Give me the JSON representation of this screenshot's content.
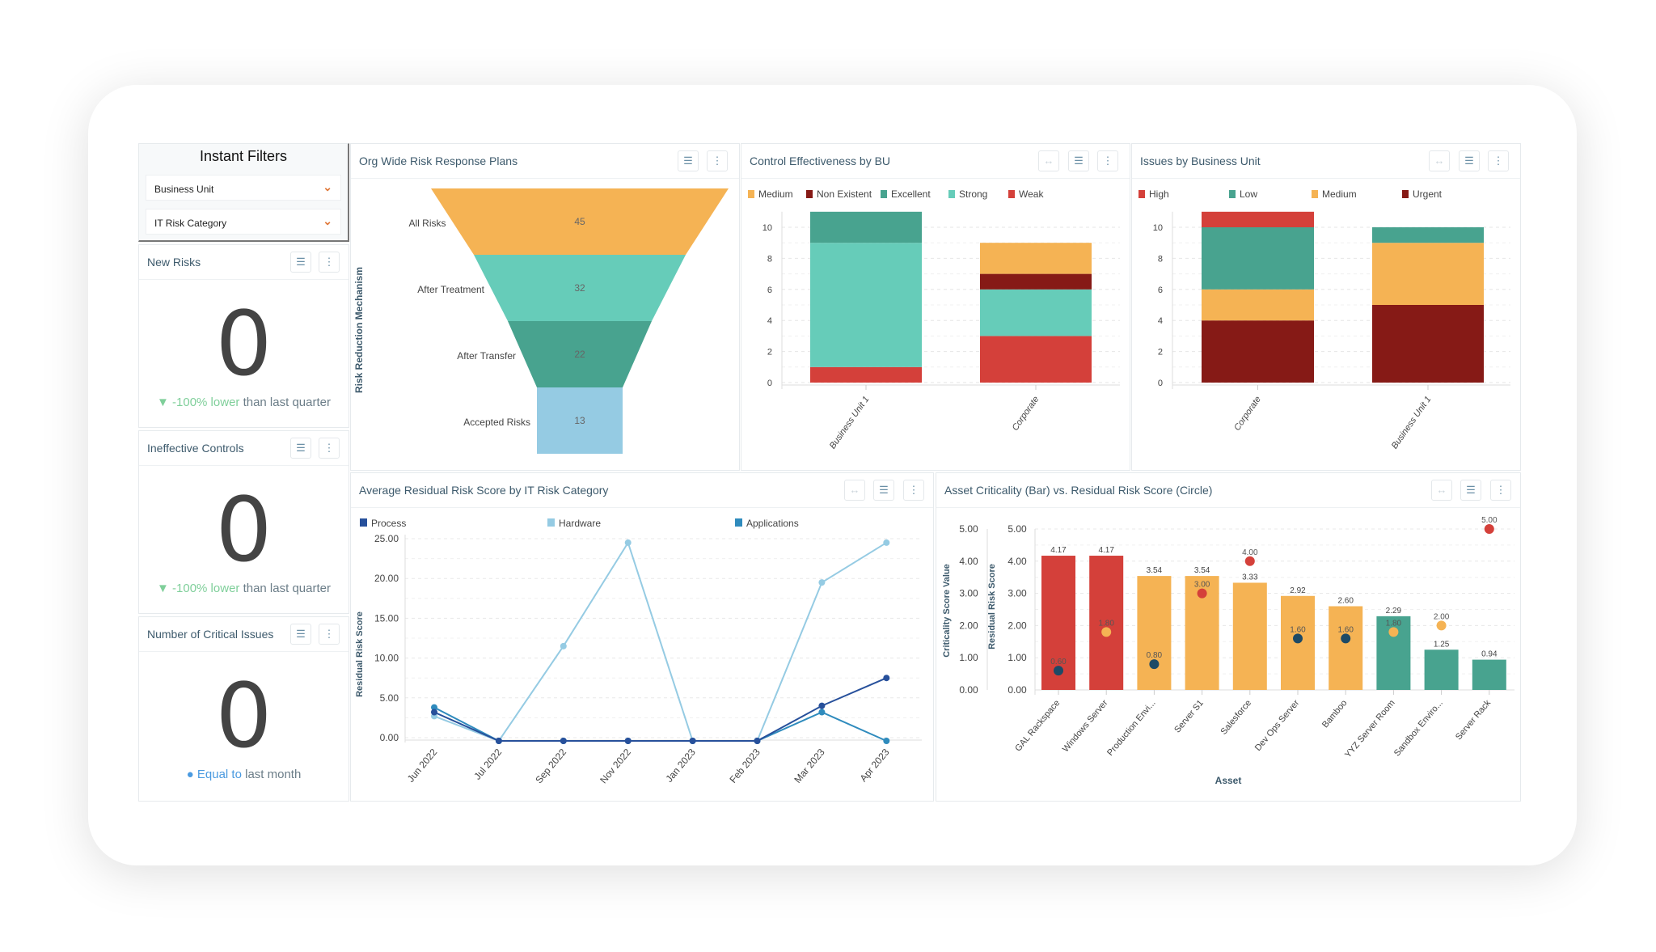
{
  "filters": {
    "title": "Instant Filters",
    "business_unit": "Business Unit",
    "it_risk_category": "IT Risk Category"
  },
  "kpis": [
    {
      "title": "New Risks",
      "value": "0",
      "delta": "▼ -100% lower",
      "suffix": " than last quarter",
      "trend": "down"
    },
    {
      "title": "Ineffective Controls",
      "value": "0",
      "delta": "▼ -100% lower",
      "suffix": " than last quarter",
      "trend": "down"
    },
    {
      "title": "Number of Critical Issues",
      "value": "0",
      "delta": "● Equal to",
      "suffix": " last month",
      "trend": "equal"
    }
  ],
  "icons": {
    "filter": "filter-icon",
    "more": "more-vertical-icon",
    "fit": "fit-width-icon",
    "chevron": "chevron-down-icon"
  },
  "chart_data": [
    {
      "id": "funnel",
      "type": "funnel",
      "title": "Org Wide Risk Response Plans",
      "ylabel": "Risk Reduction Mechanism",
      "categories": [
        "All Risks",
        "After Treatment",
        "After Transfer",
        "Accepted Risks"
      ],
      "values": [
        45,
        32,
        22,
        13
      ],
      "colors": [
        "#f5b354",
        "#66ccb9",
        "#48a38f",
        "#95cbe3"
      ]
    },
    {
      "id": "control",
      "type": "bar",
      "stacked": true,
      "title": "Control Effectiveness by BU",
      "categories": [
        "Business Unit 1",
        "Corporate"
      ],
      "ylim": [
        0,
        11
      ],
      "yticks": [
        0,
        2,
        4,
        6,
        8,
        10
      ],
      "grid": true,
      "legend": "top",
      "series": [
        {
          "name": "Medium",
          "color": "#f5b354",
          "values": [
            0,
            2
          ]
        },
        {
          "name": "Non Existent",
          "color": "#861a16",
          "values": [
            0,
            1
          ]
        },
        {
          "name": "Excellent",
          "color": "#48a38f",
          "values": [
            2,
            0
          ]
        },
        {
          "name": "Strong",
          "color": "#66ccb9",
          "values": [
            8,
            3
          ]
        },
        {
          "name": "Weak",
          "color": "#d4403a",
          "values": [
            1,
            3
          ]
        }
      ],
      "stack_order": [
        "Weak",
        "Strong",
        "Non Existent",
        "Excellent",
        "Medium"
      ]
    },
    {
      "id": "issues",
      "type": "bar",
      "stacked": true,
      "title": "Issues by Business Unit",
      "categories": [
        "Corporate",
        "Business Unit 1"
      ],
      "ylim": [
        0,
        11
      ],
      "yticks": [
        0,
        2,
        4,
        6,
        8,
        10
      ],
      "grid": true,
      "legend": "top",
      "series": [
        {
          "name": "High",
          "color": "#d4403a",
          "values": [
            1,
            0
          ]
        },
        {
          "name": "Low",
          "color": "#48a38f",
          "values": [
            4,
            1
          ]
        },
        {
          "name": "Medium",
          "color": "#f5b354",
          "values": [
            2,
            4
          ]
        },
        {
          "name": "Urgent",
          "color": "#861a16",
          "values": [
            4,
            5
          ]
        }
      ],
      "stack_order": [
        "Urgent",
        "Medium",
        "Low",
        "High"
      ]
    },
    {
      "id": "line",
      "type": "line",
      "title": "Average Residual Risk Score by IT Risk Category",
      "ylabel": "Residual Risk Score",
      "categories": [
        "Jun 2022",
        "Jul 2022",
        "Sep 2022",
        "Nov 2022",
        "Jan 2023",
        "Feb 2023",
        "Mar 2023",
        "Apr 2023"
      ],
      "ylim": [
        0,
        25
      ],
      "yticks": [
        "0.00",
        "5.00",
        "10.00",
        "15.00",
        "20.00",
        "25.00"
      ],
      "grid": true,
      "legend": "top",
      "series": [
        {
          "name": "Process",
          "color": "#27509b",
          "values": [
            3.2,
            0,
            0,
            0,
            0,
            0,
            4,
            7.5
          ]
        },
        {
          "name": "Hardware",
          "color": "#95cbe3",
          "values": [
            2.7,
            0,
            11.5,
            24.5,
            0,
            0,
            19.5,
            24.5
          ]
        },
        {
          "name": "Applications",
          "color": "#2f8bbd",
          "values": [
            3.8,
            0,
            0,
            0,
            0,
            0,
            3.2,
            0
          ]
        }
      ]
    },
    {
      "id": "asset",
      "type": "bar+scatter",
      "title": "Asset Criticality (Bar) vs. Residual Risk Score (Circle)",
      "xlabel": "Asset",
      "ylabel": "Criticality Score Value",
      "ylabel2": "Residual Risk Score",
      "ylim": [
        0,
        5
      ],
      "yticks": [
        "0.00",
        "1.00",
        "2.00",
        "3.00",
        "4.00",
        "5.00"
      ],
      "categories": [
        "GAL Rackspace",
        "Windows Server",
        "Production Envi...",
        "Server S1",
        "Salesforce",
        "Dev Ops Server",
        "Bamboo",
        "YYZ Server Room",
        "Sandbox Enviro...",
        "Server Rack"
      ],
      "bars": [
        4.17,
        4.17,
        3.54,
        3.54,
        3.33,
        2.92,
        2.6,
        2.29,
        1.25,
        0.94
      ],
      "bar_labels": [
        "4.17",
        "4.17",
        "3.54",
        "3.54",
        "3.33",
        "2.92",
        "2.60",
        "2.29",
        "1.25",
        "0.94"
      ],
      "bar_colors": [
        "#d4403a",
        "#d4403a",
        "#f5b354",
        "#f5b354",
        "#f5b354",
        "#f5b354",
        "#f5b354",
        "#48a38f",
        "#48a38f",
        "#48a38f"
      ],
      "circles": [
        0.6,
        1.8,
        0.8,
        3.0,
        4.0,
        1.6,
        1.6,
        1.8,
        2.0,
        5.0
      ],
      "circle_labels": [
        "0.60",
        "1.80",
        "0.80",
        "3.00",
        "4.00",
        "1.60",
        "1.60",
        "1.80",
        "2.00",
        "5.00"
      ],
      "circle_colors": [
        "#1d4a66",
        "#f5b354",
        "#1d4a66",
        "#d4403a",
        "#d4403a",
        "#1d4a66",
        "#1d4a66",
        "#f5b354",
        "#f5b354",
        "#d4403a"
      ]
    }
  ]
}
